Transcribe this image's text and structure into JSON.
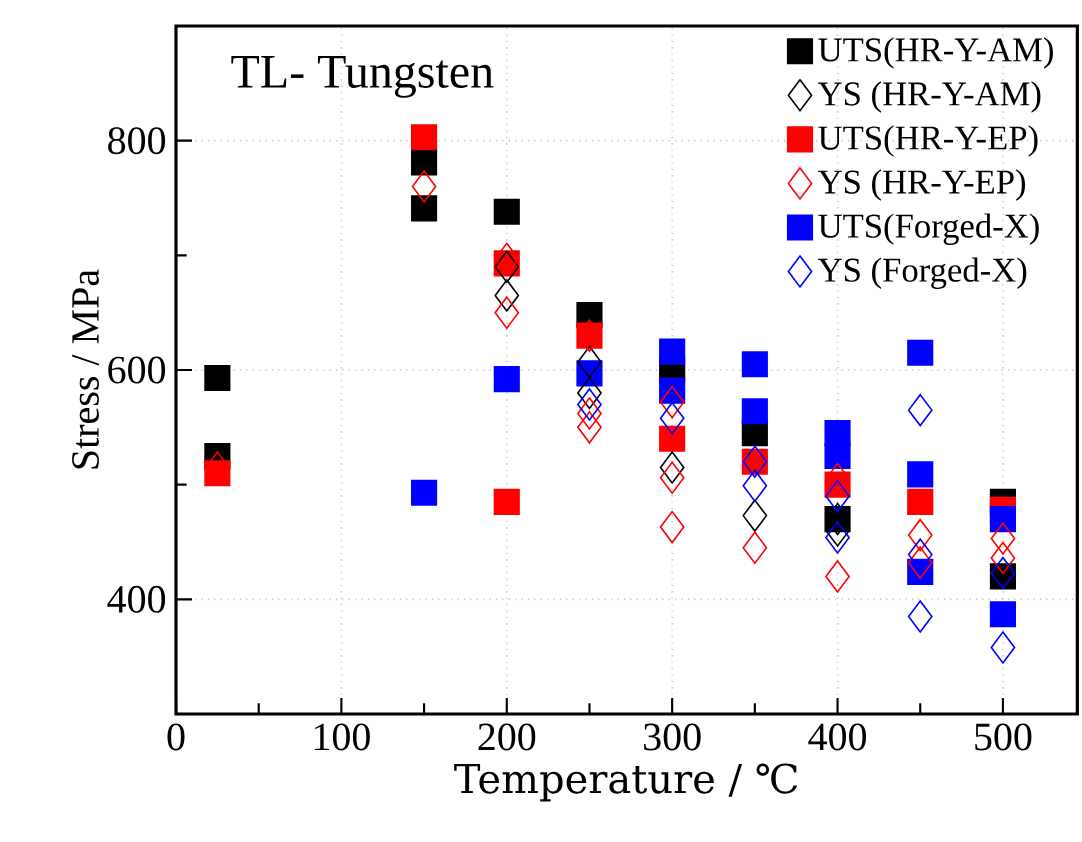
{
  "chart_data": {
    "type": "scatter",
    "title": "TL- Tungsten",
    "xlabel": "Temperature / ℃",
    "ylabel": "Stress / MPa",
    "xlim": [
      0,
      545
    ],
    "ylim": [
      300,
      900
    ],
    "xticks": [
      0,
      {
        "value": 50,
        "label": null
      },
      100,
      {
        "value": 150,
        "label": null
      },
      200,
      {
        "value": 250,
        "label": null
      },
      300,
      {
        "value": 350,
        "label": null
      },
      400,
      {
        "value": 450,
        "label": null
      },
      500
    ],
    "yticks": [
      {
        "value": 300,
        "label": null
      },
      400,
      {
        "value": 500,
        "label": null
      },
      600,
      {
        "value": 700,
        "label": null
      },
      800,
      {
        "value": 900,
        "label": null
      }
    ],
    "grid": true,
    "legend": "top right",
    "series": [
      {
        "name": "UTS(HR-Y-AM)",
        "color": "#000000",
        "marker": "square",
        "x": [
          25,
          25,
          150,
          150,
          200,
          250,
          300,
          350,
          400,
          500,
          500
        ],
        "values": [
          593,
          525,
          781,
          741,
          738,
          648,
          600,
          545,
          470,
          485,
          420
        ]
      },
      {
        "name": "YS   (HR-Y-AM)",
        "color": "#000000",
        "marker": "diamond",
        "x": [
          200,
          200,
          250,
          250,
          300,
          350,
          400,
          400
        ],
        "values": [
          690,
          665,
          607,
          580,
          515,
          473,
          470,
          460
        ]
      },
      {
        "name": "UTS(HR-Y-EP)",
        "color": "#ff0000",
        "marker": "square",
        "x": [
          25,
          150,
          200,
          200,
          250,
          300,
          350,
          400,
          450,
          500
        ],
        "values": [
          510,
          803,
          485,
          693,
          630,
          540,
          520,
          500,
          485,
          478
        ]
      },
      {
        "name": "YS   (HR-Y-EP)",
        "color": "#ff0000",
        "marker": "diamond",
        "x": [
          25,
          150,
          200,
          200,
          250,
          250,
          250,
          300,
          300,
          300,
          350,
          400,
          400,
          450,
          450,
          500,
          500
        ],
        "values": [
          515,
          760,
          697,
          650,
          630,
          562,
          550,
          572,
          506,
          463,
          445,
          505,
          420,
          456,
          432,
          453,
          436
        ]
      },
      {
        "name": "UTS(Forged-X)",
        "color": "#0000ff",
        "marker": "square",
        "x": [
          150,
          200,
          250,
          300,
          300,
          350,
          350,
          400,
          400,
          450,
          450,
          450,
          500,
          500
        ],
        "values": [
          493,
          592,
          597,
          616,
          582,
          605,
          564,
          545,
          525,
          615,
          509,
          424,
          470,
          387
        ]
      },
      {
        "name": "YS   (Forged-X)",
        "color": "#0000ff",
        "marker": "diamond",
        "x": [
          250,
          300,
          350,
          350,
          400,
          400,
          450,
          450,
          450,
          500,
          500
        ],
        "values": [
          570,
          558,
          520,
          499,
          490,
          454,
          565,
          439,
          385,
          423,
          358
        ]
      }
    ]
  }
}
